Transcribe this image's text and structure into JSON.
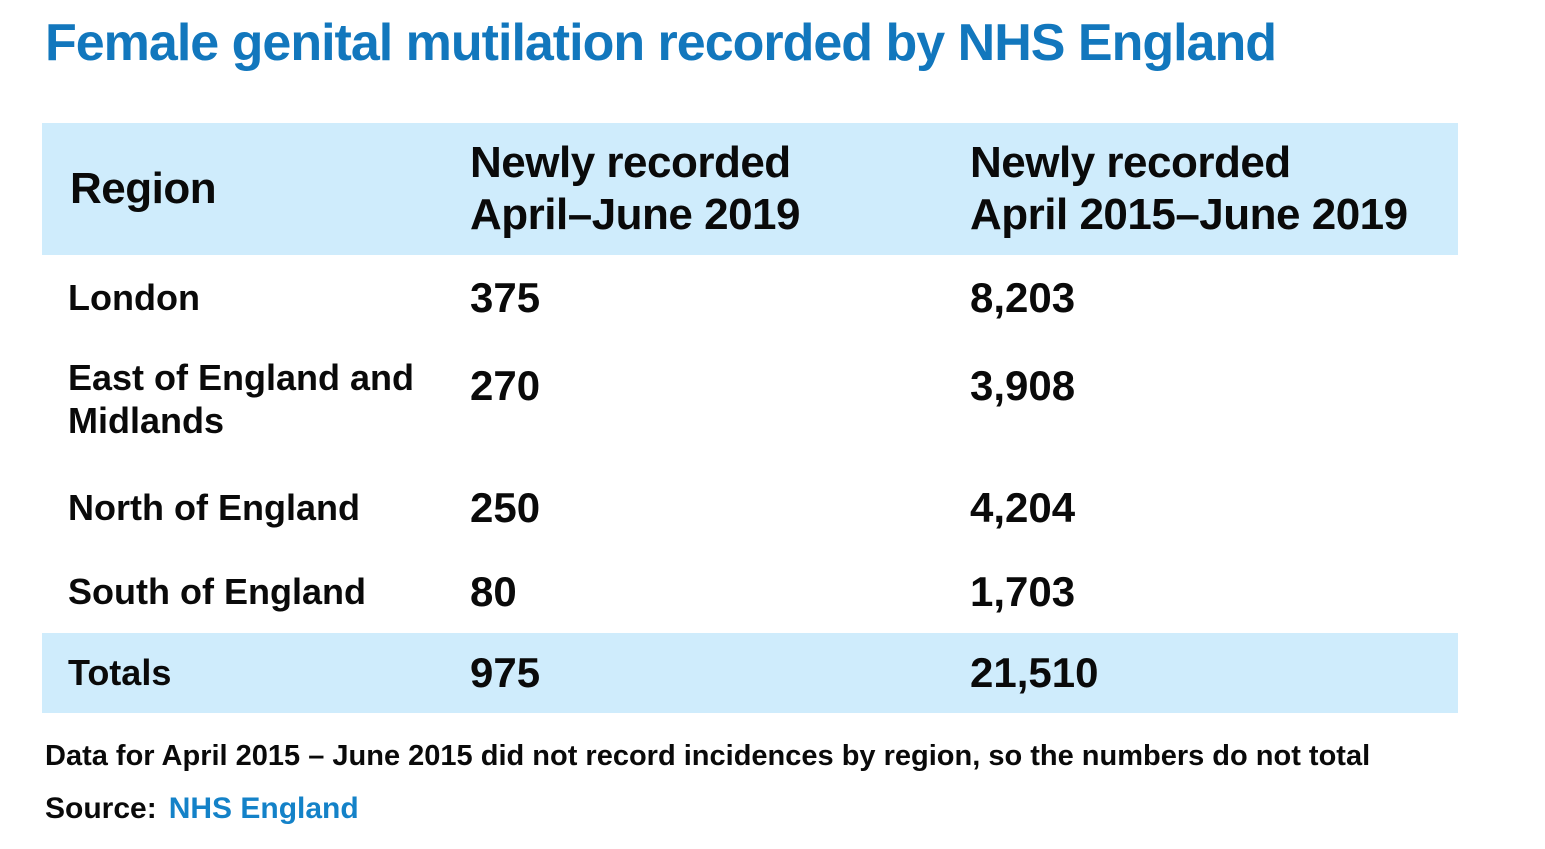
{
  "title": "Female genital mutilation recorded by NHS England",
  "colors": {
    "accent_blue": "#1277bd",
    "link_blue": "#1482c8",
    "band_light_blue": "#cfecfc"
  },
  "table": {
    "header": {
      "region": "Region",
      "col2_line1": "Newly recorded",
      "col2_line2": "April–June 2019",
      "col3_line1": "Newly recorded",
      "col3_line2": "April 2015–June 2019"
    },
    "rows": [
      {
        "region": "London",
        "newly_recorded_apr_jun_2019": "375",
        "newly_recorded_apr2015_jun2019": "8,203"
      },
      {
        "region": "East of England and Midlands",
        "newly_recorded_apr_jun_2019": "270",
        "newly_recorded_apr2015_jun2019": "3,908"
      },
      {
        "region": "North of England",
        "newly_recorded_apr_jun_2019": "250",
        "newly_recorded_apr2015_jun2019": "4,204"
      },
      {
        "region": "South of England",
        "newly_recorded_apr_jun_2019": "80",
        "newly_recorded_apr2015_jun2019": "1,703"
      }
    ],
    "totals": {
      "label": "Totals",
      "newly_recorded_apr_jun_2019": "975",
      "newly_recorded_apr2015_jun2019": "21,510"
    }
  },
  "footnote": "Data for April 2015 – June 2015 did not record incidences by region, so the numbers do not total",
  "source": {
    "label": "Source:",
    "value": "NHS England"
  },
  "chart_data": {
    "type": "table",
    "title": "Female genital mutilation recorded by NHS England",
    "columns": [
      "Region",
      "Newly recorded April–June 2019",
      "Newly recorded April 2015–June 2019"
    ],
    "rows": [
      [
        "London",
        375,
        8203
      ],
      [
        "East of England and Midlands",
        270,
        3908
      ],
      [
        "North of England",
        250,
        4204
      ],
      [
        "South of England",
        80,
        1703
      ],
      [
        "Totals",
        975,
        21510
      ]
    ],
    "note": "Data for April 2015 – June 2015 did not record incidences by region, so the numbers do not total",
    "source": "NHS England"
  }
}
